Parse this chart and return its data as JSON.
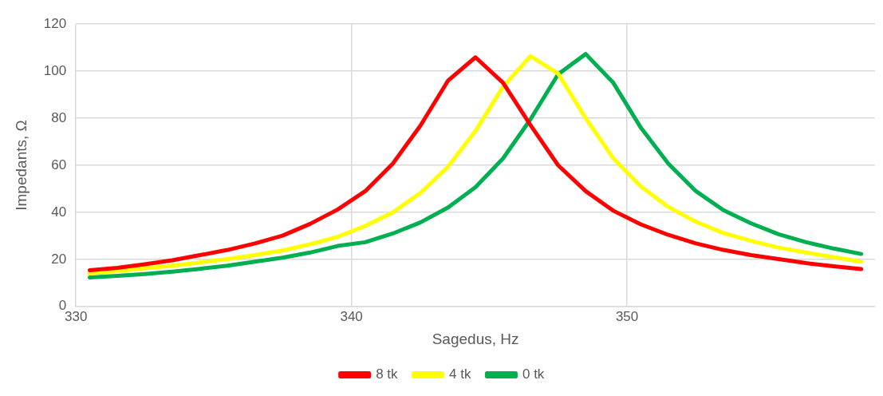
{
  "chart_data": {
    "type": "line",
    "xlabel": "Sagedus, Hz",
    "ylabel": "Impedants, Ω",
    "x": [
      330.5,
      331.5,
      332.5,
      333.5,
      334.5,
      335.5,
      336.5,
      337.5,
      338.5,
      339.5,
      340.5,
      341.5,
      342.5,
      343.5,
      344.5,
      345.5,
      346.5,
      347.5,
      348.5,
      349.5,
      350.5,
      351.5,
      352.5,
      353.5,
      354.5,
      355.5,
      356.5,
      357.5,
      358.5
    ],
    "series": [
      {
        "name": "8 tk",
        "color": "#ff0000",
        "values": [
          15.4,
          16.4,
          17.9,
          19.6,
          21.8,
          24,
          26.8,
          30.1,
          35.1,
          41.2,
          49,
          60.7,
          76.8,
          95.9,
          105.9,
          95.1,
          77,
          60,
          49,
          40.7,
          34.9,
          30.4,
          26.8,
          24,
          21.8,
          20.1,
          18.4,
          17.1,
          15.9
        ]
      },
      {
        "name": "4 tk",
        "color": "#ffff00",
        "values": [
          14,
          15,
          16.2,
          17.3,
          18.7,
          20.1,
          21.8,
          23.8,
          26.4,
          29.6,
          34.2,
          40,
          48.2,
          59.3,
          74.6,
          93.4,
          106.4,
          99,
          80,
          63,
          51,
          42.3,
          36,
          31.2,
          27.9,
          25,
          22.9,
          21,
          19
        ]
      },
      {
        "name": "0 tk",
        "color": "#00b050",
        "values": [
          12.3,
          13,
          13.8,
          14.8,
          16,
          17.3,
          19,
          20.7,
          22.9,
          25.7,
          27.3,
          31,
          35.7,
          42,
          50.7,
          62.9,
          79.6,
          98.7,
          107.3,
          95.1,
          76,
          60.7,
          49,
          40.9,
          35.3,
          30.7,
          27.3,
          24.6,
          22.3
        ]
      }
    ],
    "xlim": [
      330,
      359
    ],
    "xticks": [
      330,
      340,
      350
    ],
    "ylim": [
      0,
      120
    ],
    "yticks": [
      0,
      20,
      40,
      60,
      80,
      100,
      120
    ],
    "grid": true,
    "legend": "bottom",
    "marker": "none",
    "line_style": "solid"
  }
}
